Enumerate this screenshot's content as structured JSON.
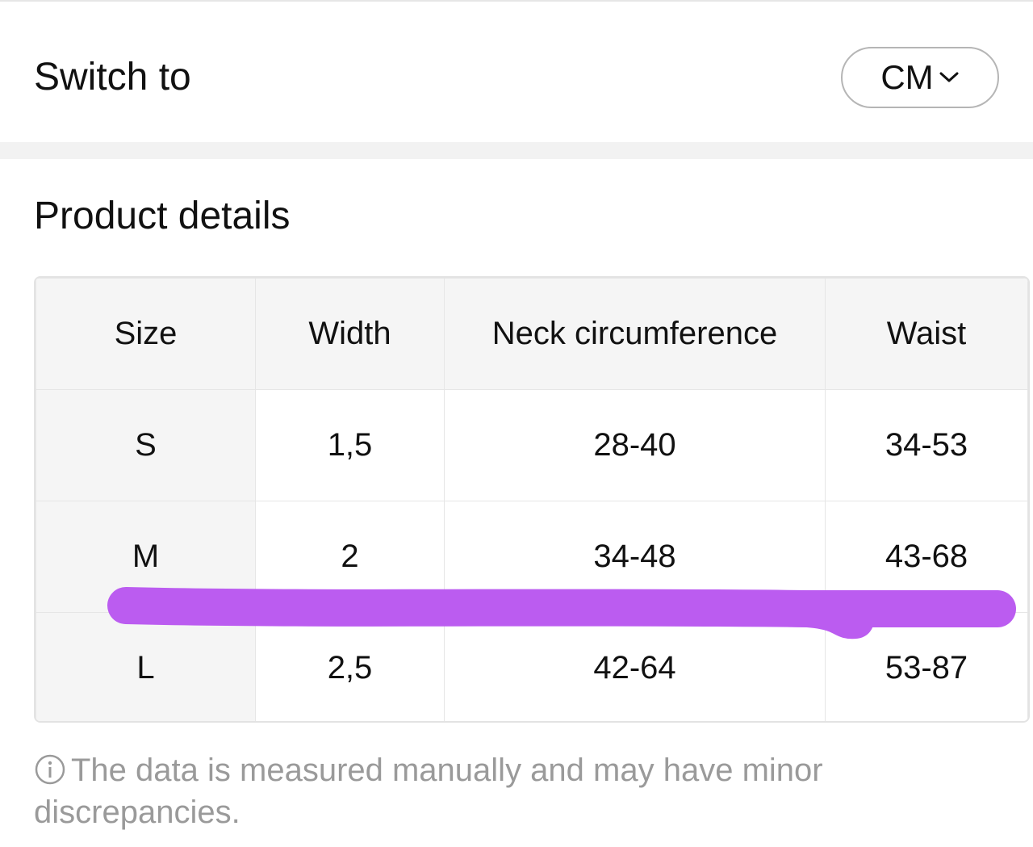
{
  "header": {
    "title": "Switch to",
    "unit": "CM"
  },
  "section": {
    "title": "Product details"
  },
  "table": {
    "columns": [
      "Size",
      "Width",
      "Neck circumference",
      "Waist"
    ],
    "rows": [
      [
        "S",
        "1,5",
        "28-40",
        "34-53"
      ],
      [
        "M",
        "2",
        "34-48",
        "43-68"
      ],
      [
        "L",
        "2,5",
        "42-64",
        "53-87"
      ]
    ]
  },
  "note": "The data is measured manually and may have minor discrepancies."
}
